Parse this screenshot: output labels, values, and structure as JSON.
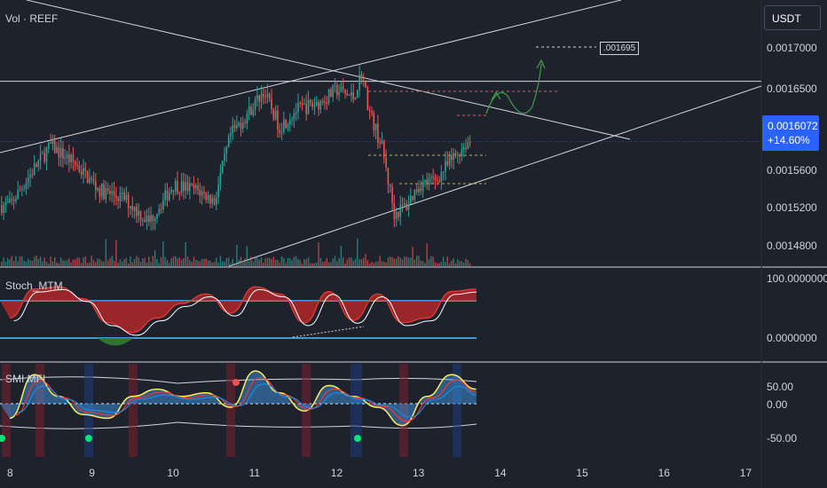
{
  "header": {
    "title": "Vol · REEF",
    "currency": "USDT"
  },
  "price_tag": {
    "price": "0.0016072",
    "change": "+14.60%"
  },
  "target_label": ".001695",
  "panes": {
    "stoch": {
      "title": "Stoch_MTM"
    },
    "smi": {
      "title": "SMI MFI"
    }
  },
  "colors": {
    "background": "#1e222d",
    "up": "#26a69a",
    "down": "#ef5350",
    "tag": "#2962ff",
    "stoch_fill_up": "#c62828",
    "stoch_fill_down": "#2e7d32",
    "smi_yellow": "#ffee58",
    "band": "#42a5f5"
  },
  "chart_data": [
    {
      "type": "candlestick",
      "title": "Vol · REEF",
      "x_ticks": [
        "8",
        "9",
        "10",
        "11",
        "12",
        "13",
        "14",
        "15",
        "16",
        "17"
      ],
      "y_ticks": [
        "0.0017000",
        "0.0016500",
        "0.0016000",
        "0.0015600",
        "0.0015200",
        "0.0014800"
      ],
      "ylim": [
        0.00146,
        0.00174
      ],
      "close_series": [
        {
          "day": 8.0,
          "price": 0.00153
        },
        {
          "day": 8.3,
          "price": 0.001575
        },
        {
          "day": 8.5,
          "price": 0.001602
        },
        {
          "day": 8.8,
          "price": 0.00158
        },
        {
          "day": 9.1,
          "price": 0.001548
        },
        {
          "day": 9.4,
          "price": 0.001538
        },
        {
          "day": 9.7,
          "price": 0.00151
        },
        {
          "day": 10.0,
          "price": 0.001555
        },
        {
          "day": 10.3,
          "price": 0.001548
        },
        {
          "day": 10.5,
          "price": 0.001535
        },
        {
          "day": 10.7,
          "price": 0.001615
        },
        {
          "day": 10.9,
          "price": 0.00164
        },
        {
          "day": 11.1,
          "price": 0.001668
        },
        {
          "day": 11.3,
          "price": 0.001625
        },
        {
          "day": 11.5,
          "price": 0.001645
        },
        {
          "day": 11.8,
          "price": 0.001655
        },
        {
          "day": 12.0,
          "price": 0.00167
        },
        {
          "day": 12.2,
          "price": 0.00166
        },
        {
          "day": 12.3,
          "price": 0.00169
        },
        {
          "day": 12.4,
          "price": 0.001642
        },
        {
          "day": 12.55,
          "price": 0.0016
        },
        {
          "day": 12.7,
          "price": 0.00152
        },
        {
          "day": 12.85,
          "price": 0.00153
        },
        {
          "day": 13.0,
          "price": 0.001555
        },
        {
          "day": 13.2,
          "price": 0.00156
        },
        {
          "day": 13.4,
          "price": 0.001585
        },
        {
          "day": 13.6,
          "price": 0.001607
        }
      ],
      "target_price": 0.001695,
      "current_price": 0.0016072
    },
    {
      "type": "line",
      "title": "Stoch_MTM",
      "y_ticks": [
        "100.0000000",
        "0.0000000"
      ],
      "series": [
        {
          "x": [
            8,
            8.3,
            8.6,
            8.9,
            9.2,
            9.5,
            9.8,
            10.1,
            10.4,
            10.7,
            11.0,
            11.3,
            11.6,
            11.9,
            12.2,
            12.5,
            12.8,
            13.1,
            13.4,
            13.7
          ],
          "y": [
            20,
            80,
            85,
            60,
            10,
            -10,
            20,
            50,
            70,
            30,
            85,
            70,
            10,
            75,
            15,
            70,
            10,
            20,
            75,
            80
          ]
        }
      ]
    },
    {
      "type": "line",
      "title": "SMI MFI",
      "y_ticks": [
        "50.00",
        "0.00",
        "-50.00"
      ],
      "series": [
        {
          "x": [
            8,
            8.3,
            8.6,
            8.9,
            9.2,
            9.5,
            9.8,
            10.1,
            10.4,
            10.7,
            11.0,
            11.3,
            11.6,
            11.9,
            12.2,
            12.5,
            12.8,
            13.1,
            13.4,
            13.7
          ],
          "y": [
            -20,
            40,
            10,
            -15,
            -20,
            10,
            20,
            10,
            15,
            -5,
            45,
            15,
            -10,
            25,
            10,
            -5,
            -30,
            10,
            40,
            20
          ]
        }
      ]
    }
  ]
}
